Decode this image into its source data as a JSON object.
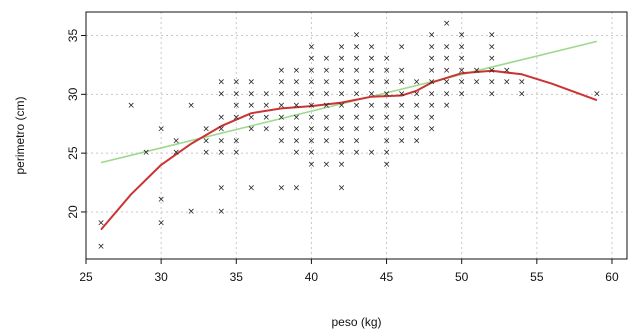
{
  "chart_data": {
    "type": "scatter",
    "title": "",
    "xlabel": "peso (kg)",
    "ylabel": "perimetro (cm)",
    "xlim": [
      25,
      61
    ],
    "ylim": [
      16,
      37
    ],
    "xticks": [
      25,
      30,
      35,
      40,
      45,
      50,
      55,
      60
    ],
    "yticks": [
      20,
      25,
      30,
      35
    ],
    "grid": true,
    "marker": "×",
    "colors": {
      "points": "#222222",
      "linear_fit": "#9fd98f",
      "smooth_fit": "#cc3333",
      "grid": "#c8c8c8",
      "axes": "#111111"
    },
    "points": [
      [
        26,
        17
      ],
      [
        26,
        19
      ],
      [
        28,
        29
      ],
      [
        29,
        25
      ],
      [
        30,
        19
      ],
      [
        30,
        21
      ],
      [
        30,
        27
      ],
      [
        31,
        25
      ],
      [
        31,
        26
      ],
      [
        32,
        20
      ],
      [
        32,
        29
      ],
      [
        33,
        25
      ],
      [
        33,
        26
      ],
      [
        33,
        27
      ],
      [
        34,
        20
      ],
      [
        34,
        22
      ],
      [
        34,
        25
      ],
      [
        34,
        26
      ],
      [
        34,
        27
      ],
      [
        34,
        28
      ],
      [
        34,
        30
      ],
      [
        34,
        31
      ],
      [
        35,
        25
      ],
      [
        35,
        26
      ],
      [
        35,
        28
      ],
      [
        35,
        29
      ],
      [
        35,
        30
      ],
      [
        35,
        31
      ],
      [
        36,
        22
      ],
      [
        36,
        27
      ],
      [
        36,
        28
      ],
      [
        36,
        29
      ],
      [
        36,
        30
      ],
      [
        36,
        31
      ],
      [
        37,
        27
      ],
      [
        37,
        28
      ],
      [
        37,
        29
      ],
      [
        37,
        30
      ],
      [
        38,
        22
      ],
      [
        38,
        26
      ],
      [
        38,
        27
      ],
      [
        38,
        28
      ],
      [
        38,
        29
      ],
      [
        38,
        30
      ],
      [
        38,
        31
      ],
      [
        38,
        32
      ],
      [
        39,
        22
      ],
      [
        39,
        25
      ],
      [
        39,
        26
      ],
      [
        39,
        27
      ],
      [
        39,
        28
      ],
      [
        39,
        29
      ],
      [
        39,
        30
      ],
      [
        39,
        31
      ],
      [
        39,
        32
      ],
      [
        40,
        24
      ],
      [
        40,
        25
      ],
      [
        40,
        26
      ],
      [
        40,
        27
      ],
      [
        40,
        28
      ],
      [
        40,
        29
      ],
      [
        40,
        30
      ],
      [
        40,
        31
      ],
      [
        40,
        32
      ],
      [
        40,
        33
      ],
      [
        40,
        34
      ],
      [
        41,
        24
      ],
      [
        41,
        26
      ],
      [
        41,
        27
      ],
      [
        41,
        28
      ],
      [
        41,
        29
      ],
      [
        41,
        30
      ],
      [
        41,
        31
      ],
      [
        41,
        32
      ],
      [
        41,
        33
      ],
      [
        42,
        22
      ],
      [
        42,
        24
      ],
      [
        42,
        25
      ],
      [
        42,
        26
      ],
      [
        42,
        27
      ],
      [
        42,
        28
      ],
      [
        42,
        29
      ],
      [
        42,
        30
      ],
      [
        42,
        31
      ],
      [
        42,
        32
      ],
      [
        42,
        33
      ],
      [
        42,
        34
      ],
      [
        43,
        25
      ],
      [
        43,
        26
      ],
      [
        43,
        27
      ],
      [
        43,
        28
      ],
      [
        43,
        29
      ],
      [
        43,
        30
      ],
      [
        43,
        31
      ],
      [
        43,
        32
      ],
      [
        43,
        33
      ],
      [
        43,
        34
      ],
      [
        43,
        35
      ],
      [
        44,
        25
      ],
      [
        44,
        27
      ],
      [
        44,
        28
      ],
      [
        44,
        29
      ],
      [
        44,
        30
      ],
      [
        44,
        31
      ],
      [
        44,
        32
      ],
      [
        44,
        33
      ],
      [
        44,
        34
      ],
      [
        45,
        24
      ],
      [
        45,
        25
      ],
      [
        45,
        26
      ],
      [
        45,
        27
      ],
      [
        45,
        28
      ],
      [
        45,
        29
      ],
      [
        45,
        30
      ],
      [
        45,
        31
      ],
      [
        45,
        32
      ],
      [
        45,
        33
      ],
      [
        46,
        26
      ],
      [
        46,
        27
      ],
      [
        46,
        28
      ],
      [
        46,
        29
      ],
      [
        46,
        30
      ],
      [
        46,
        31
      ],
      [
        46,
        32
      ],
      [
        46,
        34
      ],
      [
        47,
        26
      ],
      [
        47,
        27
      ],
      [
        47,
        28
      ],
      [
        47,
        29
      ],
      [
        47,
        30
      ],
      [
        47,
        31
      ],
      [
        48,
        27
      ],
      [
        48,
        28
      ],
      [
        48,
        29
      ],
      [
        48,
        30
      ],
      [
        48,
        31
      ],
      [
        48,
        32
      ],
      [
        48,
        33
      ],
      [
        48,
        34
      ],
      [
        48,
        35
      ],
      [
        49,
        29
      ],
      [
        49,
        30
      ],
      [
        49,
        31
      ],
      [
        49,
        32
      ],
      [
        49,
        33
      ],
      [
        49,
        34
      ],
      [
        49,
        36
      ],
      [
        50,
        30
      ],
      [
        50,
        31
      ],
      [
        50,
        32
      ],
      [
        50,
        33
      ],
      [
        50,
        34
      ],
      [
        50,
        35
      ],
      [
        51,
        31
      ],
      [
        51,
        32
      ],
      [
        52,
        30
      ],
      [
        52,
        31
      ],
      [
        52,
        32
      ],
      [
        52,
        33
      ],
      [
        52,
        34
      ],
      [
        52,
        35
      ],
      [
        53,
        31
      ],
      [
        53,
        32
      ],
      [
        54,
        30
      ],
      [
        54,
        31
      ],
      [
        59,
        30
      ]
    ],
    "series": [
      {
        "type": "line",
        "x": [
          26,
          59
        ],
        "y": [
          24.2,
          34.5
        ]
      },
      {
        "type": "smooth",
        "x": [
          26,
          28,
          30,
          32,
          34,
          36,
          38,
          40,
          42,
          44,
          46,
          47,
          48,
          50,
          52,
          54,
          56,
          59
        ],
        "y": [
          18.5,
          21.5,
          24.0,
          25.8,
          27.3,
          28.4,
          28.8,
          29.0,
          29.3,
          29.8,
          29.9,
          30.3,
          31.0,
          31.8,
          32.0,
          31.7,
          30.9,
          29.5
        ]
      }
    ]
  }
}
